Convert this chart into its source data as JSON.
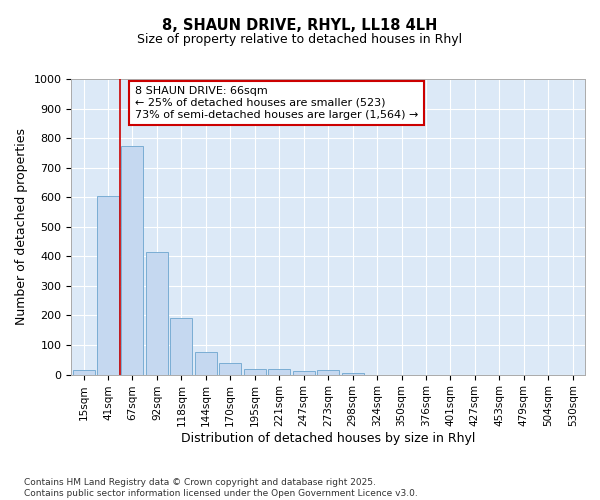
{
  "title": "8, SHAUN DRIVE, RHYL, LL18 4LH",
  "subtitle": "Size of property relative to detached houses in Rhyl",
  "xlabel": "Distribution of detached houses by size in Rhyl",
  "ylabel": "Number of detached properties",
  "bar_color": "#c5d8f0",
  "bar_edge_color": "#7aadd4",
  "categories": [
    "15sqm",
    "41sqm",
    "67sqm",
    "92sqm",
    "118sqm",
    "144sqm",
    "170sqm",
    "195sqm",
    "221sqm",
    "247sqm",
    "273sqm",
    "298sqm",
    "324sqm",
    "350sqm",
    "376sqm",
    "401sqm",
    "427sqm",
    "453sqm",
    "479sqm",
    "504sqm",
    "530sqm"
  ],
  "values": [
    15,
    605,
    775,
    415,
    193,
    78,
    40,
    18,
    18,
    12,
    14,
    5,
    0,
    0,
    0,
    0,
    0,
    0,
    0,
    0,
    0
  ],
  "ylim": [
    0,
    1000
  ],
  "yticks": [
    0,
    100,
    200,
    300,
    400,
    500,
    600,
    700,
    800,
    900,
    1000
  ],
  "vline_x": 2.0,
  "annotation_text": "8 SHAUN DRIVE: 66sqm\n← 25% of detached houses are smaller (523)\n73% of semi-detached houses are larger (1,564) →",
  "annotation_box_color": "#ffffff",
  "annotation_box_edge": "#cc0000",
  "footer": "Contains HM Land Registry data © Crown copyright and database right 2025.\nContains public sector information licensed under the Open Government Licence v3.0.",
  "fig_bg_color": "#ffffff",
  "plot_bg_color": "#dce9f7",
  "grid_color": "#ffffff"
}
